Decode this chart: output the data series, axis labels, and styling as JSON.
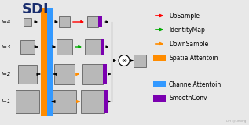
{
  "title": "SDI",
  "background_color": "#e8e8e8",
  "levels": [
    "l=4",
    "l=3",
    "l=2",
    "l=1"
  ],
  "colors": {
    "orange": "#FF8C00",
    "blue": "#3399FF",
    "purple": "#7B00B0",
    "red": "#FF0000",
    "green": "#00AA00",
    "black": "#000000",
    "gray_box": "#B8B8B8",
    "box_edge": "#707070",
    "white": "#FFFFFF"
  },
  "arrow_colors": [
    "red",
    "green",
    "orange",
    "orange"
  ],
  "legend_items": [
    {
      "label": "UpSample",
      "color": "#FF0000",
      "type": "arrow"
    },
    {
      "label": "IdentityMap",
      "color": "#00AA00",
      "type": "arrow"
    },
    {
      "label": "DownSample",
      "color": "#FF8C00",
      "type": "arrow"
    },
    {
      "label": "SpatialAttentoin",
      "color": "#FF8C00",
      "type": "patch"
    },
    {
      "label": "ChannelAttentoin",
      "color": "#3399FF",
      "type": "patch"
    },
    {
      "label": "SmoothConv",
      "color": "#7B00B0",
      "type": "patch"
    }
  ]
}
